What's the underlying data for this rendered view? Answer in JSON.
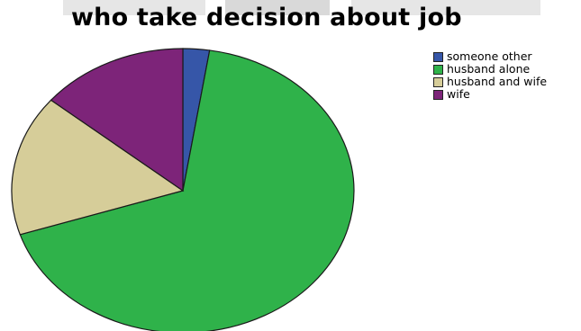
{
  "chart_data": {
    "type": "pie",
    "title": "who take decision about job",
    "categories": [
      "someone other",
      "husband alone",
      "husband and wife",
      "wife"
    ],
    "values": [
      2.5,
      67.5,
      16.0,
      14.0
    ],
    "colors": [
      "#3656a8",
      "#2fb24a",
      "#d6cd99",
      "#7d2479"
    ],
    "legend_position": "top-right"
  }
}
